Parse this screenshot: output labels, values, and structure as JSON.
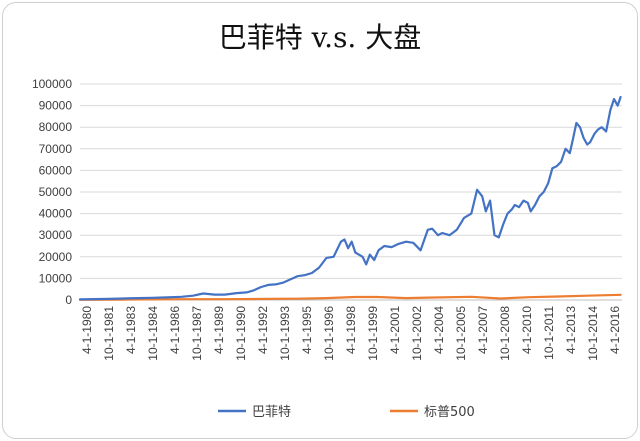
{
  "chart_data": {
    "type": "line",
    "title": "巴菲特 v.s. 大盘",
    "xlabel": "",
    "ylabel": "",
    "ylim": [
      0,
      100000
    ],
    "y_ticks": [
      0,
      10000,
      20000,
      30000,
      40000,
      50000,
      60000,
      70000,
      80000,
      90000,
      100000
    ],
    "x_tick_labels": [
      "4-1-1980",
      "10-1-1981",
      "4-1-1983",
      "10-1-1984",
      "4-1-1986",
      "10-1-1987",
      "4-1-1989",
      "10-1-1990",
      "4-1-1992",
      "10-1-1993",
      "4-1-1995",
      "10-1-1996",
      "4-1-1998",
      "10-1-1999",
      "4-1-2001",
      "10-1-2002",
      "4-1-2004",
      "10-1-2005",
      "4-1-2007",
      "10-1-2008",
      "4-1-2010",
      "10-1-2011",
      "4-1-2013",
      "10-1-2014",
      "4-1-2016"
    ],
    "grid": true,
    "legend_position": "bottom",
    "series": [
      {
        "name": "巴菲特",
        "color": "#4472c4",
        "x": [
          1980.0,
          1981.0,
          1982.0,
          1983.0,
          1984.0,
          1985.0,
          1986.0,
          1987.0,
          1987.8,
          1988.5,
          1989.3,
          1990.0,
          1990.8,
          1991.5,
          1992.0,
          1992.5,
          1993.0,
          1993.5,
          1994.0,
          1994.5,
          1995.0,
          1995.5,
          1996.0,
          1996.5,
          1997.0,
          1997.5,
          1998.0,
          1998.25,
          1998.5,
          1998.75,
          1999.0,
          1999.5,
          1999.75,
          2000.0,
          2000.3,
          2000.6,
          2001.0,
          2001.5,
          2002.0,
          2002.5,
          2003.0,
          2003.5,
          2004.0,
          2004.3,
          2004.7,
          2005.0,
          2005.5,
          2006.0,
          2006.5,
          2007.0,
          2007.4,
          2007.75,
          2008.0,
          2008.3,
          2008.6,
          2008.9,
          2009.2,
          2009.5,
          2009.8,
          2010.0,
          2010.3,
          2010.6,
          2010.9,
          2011.1,
          2011.4,
          2011.7,
          2012.0,
          2012.3,
          2012.6,
          2012.9,
          2013.2,
          2013.5,
          2013.8,
          2014.0,
          2014.25,
          2014.5,
          2014.75,
          2015.0,
          2015.2,
          2015.5,
          2015.75,
          2016.0,
          2016.3,
          2016.6,
          2016.85,
          2017.1,
          2017.3
        ],
        "y": [
          300,
          400,
          500,
          700,
          900,
          1000,
          1200,
          1500,
          2000,
          3000,
          2500,
          2500,
          3200,
          3500,
          4500,
          6000,
          7000,
          7200,
          8000,
          9500,
          11000,
          11500,
          12500,
          15000,
          19500,
          20000,
          27000,
          28000,
          24000,
          27000,
          22000,
          20000,
          16500,
          21000,
          18500,
          23000,
          25000,
          24500,
          26000,
          27000,
          26500,
          23000,
          32500,
          33000,
          30000,
          31000,
          30000,
          32500,
          38000,
          40000,
          51000,
          48000,
          41000,
          46000,
          30000,
          29000,
          35000,
          40000,
          42000,
          44000,
          43000,
          46000,
          45000,
          41000,
          44000,
          48000,
          50000,
          54000,
          61000,
          62000,
          64000,
          70000,
          68000,
          74000,
          82000,
          80000,
          75000,
          72000,
          73000,
          77000,
          79000,
          80000,
          78000,
          88000,
          93000,
          90000,
          94000
        ]
      },
      {
        "name": "标普500",
        "color": "#ed7d31",
        "x": [
          1980.0,
          1983.0,
          1987.0,
          1990.0,
          1993.0,
          1995.0,
          1997.0,
          1999.0,
          2000.5,
          2002.5,
          2004.0,
          2007.0,
          2009.0,
          2011.0,
          2013.0,
          2015.0,
          2017.3
        ],
        "y": [
          100,
          200,
          350,
          350,
          500,
          600,
          900,
          1400,
          1400,
          900,
          1100,
          1500,
          700,
          1300,
          1600,
          2000,
          2400
        ]
      }
    ]
  }
}
